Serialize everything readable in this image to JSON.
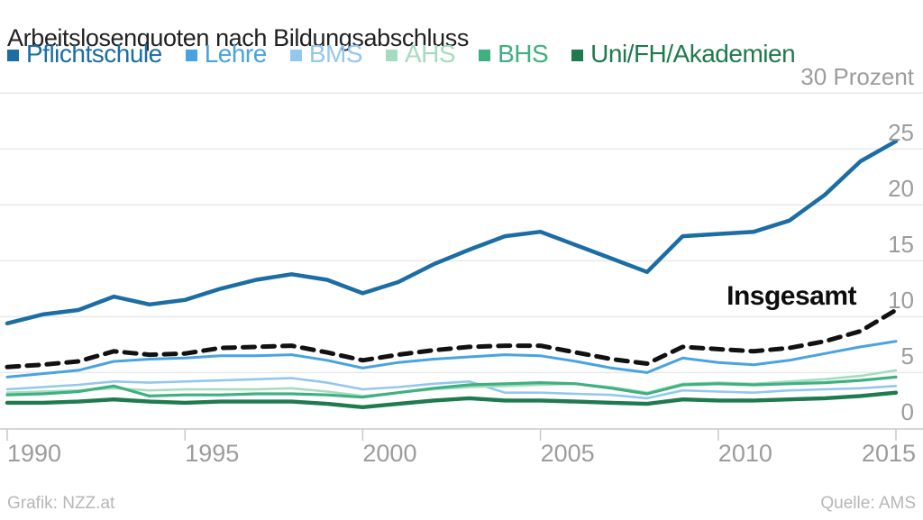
{
  "footer": {
    "credit": "Grafik: NZZ.at",
    "source": "Quelle: AMS"
  },
  "chart_data": {
    "type": "line",
    "title": "Arbeitslosenquoten nach Bildungsabschluss",
    "xlabel": "",
    "ylabel": "Prozent",
    "ylim": [
      0,
      30
    ],
    "grid": "horizontal",
    "legend_position": "top",
    "x": [
      1990,
      1991,
      1992,
      1993,
      1994,
      1995,
      1996,
      1997,
      1998,
      1999,
      2000,
      2001,
      2002,
      2003,
      2004,
      2005,
      2006,
      2007,
      2008,
      2009,
      2010,
      2011,
      2012,
      2013,
      2014,
      2015
    ],
    "x_ticks": [
      "1990",
      "1995",
      "2000",
      "2005",
      "2010",
      "2015"
    ],
    "x_tick_years": [
      1990,
      1995,
      2000,
      2005,
      2010,
      2015
    ],
    "y_ticks": [
      {
        "value": 0,
        "label": "0"
      },
      {
        "value": 5,
        "label": "5"
      },
      {
        "value": 10,
        "label": "10"
      },
      {
        "value": 15,
        "label": "15"
      },
      {
        "value": 20,
        "label": "20"
      },
      {
        "value": 25,
        "label": "25"
      },
      {
        "value": 30,
        "label": "30 Prozent"
      }
    ],
    "annotation": {
      "text": "Insgesamt",
      "series": "Insgesamt"
    },
    "legend_order": [
      "Pflichtschule",
      "Lehre",
      "BMS",
      "AHS",
      "BHS",
      "Uni/FH/Akademien"
    ],
    "series": [
      {
        "name": "BMS",
        "id": "bms",
        "color": "#94c7ee",
        "width": 2.6,
        "in_legend": true,
        "values": [
          3.5,
          3.7,
          3.9,
          4.2,
          4.1,
          4.2,
          4.3,
          4.4,
          4.5,
          4.1,
          3.5,
          3.7,
          4.0,
          4.2,
          3.2,
          3.2,
          3.1,
          3.0,
          2.7,
          3.4,
          3.3,
          3.2,
          3.4,
          3.5,
          3.6,
          3.8
        ]
      },
      {
        "name": "AHS",
        "id": "ahs",
        "color": "#a5dcc0",
        "width": 2.6,
        "in_legend": true,
        "values": [
          3.2,
          3.3,
          3.4,
          3.6,
          3.4,
          3.5,
          3.5,
          3.5,
          3.6,
          3.3,
          2.9,
          3.2,
          3.5,
          3.7,
          3.8,
          3.9,
          4.0,
          3.7,
          3.2,
          4.0,
          4.1,
          4.0,
          4.2,
          4.4,
          4.7,
          5.2
        ]
      },
      {
        "name": "BHS",
        "id": "bhs",
        "color": "#3fb07f",
        "width": 3.2,
        "in_legend": true,
        "values": [
          3.0,
          3.1,
          3.3,
          3.8,
          2.9,
          3.0,
          3.0,
          3.1,
          3.1,
          3.0,
          2.8,
          3.2,
          3.6,
          3.9,
          4.0,
          4.1,
          4.0,
          3.6,
          3.1,
          3.9,
          4.0,
          3.9,
          4.0,
          4.1,
          4.3,
          4.6
        ]
      },
      {
        "name": "Uni/FH/Akademien",
        "id": "uni-fh-akademien",
        "color": "#1f7a4d",
        "width": 4.4,
        "in_legend": true,
        "values": [
          2.3,
          2.3,
          2.4,
          2.6,
          2.4,
          2.3,
          2.4,
          2.4,
          2.4,
          2.2,
          1.9,
          2.2,
          2.5,
          2.7,
          2.5,
          2.5,
          2.4,
          2.3,
          2.2,
          2.6,
          2.5,
          2.5,
          2.6,
          2.7,
          2.9,
          3.2
        ]
      },
      {
        "name": "Lehre",
        "id": "lehre",
        "color": "#49a3e0",
        "width": 3.0,
        "in_legend": true,
        "values": [
          4.6,
          4.9,
          5.2,
          6.0,
          6.2,
          6.3,
          6.5,
          6.5,
          6.6,
          6.1,
          5.4,
          5.9,
          6.2,
          6.4,
          6.6,
          6.5,
          6.0,
          5.4,
          5.0,
          6.3,
          5.9,
          5.7,
          6.1,
          6.7,
          7.3,
          7.8
        ]
      },
      {
        "name": "Pflichtschule",
        "id": "pflichtschule",
        "color": "#1b6da3",
        "width": 4.5,
        "in_legend": true,
        "values": [
          9.4,
          10.2,
          10.6,
          11.8,
          11.1,
          11.5,
          12.5,
          13.3,
          13.8,
          13.3,
          12.1,
          13.1,
          14.7,
          16.0,
          17.2,
          17.6,
          16.4,
          15.2,
          14.0,
          17.2,
          17.4,
          17.6,
          18.6,
          20.9,
          23.9,
          25.7
        ]
      },
      {
        "name": "Insgesamt",
        "id": "insgesamt",
        "color": "#111111",
        "width": 5.0,
        "dash": "13 9",
        "in_legend": false,
        "values": [
          5.5,
          5.7,
          6.0,
          6.9,
          6.6,
          6.7,
          7.2,
          7.3,
          7.4,
          6.8,
          6.1,
          6.6,
          7.0,
          7.3,
          7.4,
          7.4,
          6.8,
          6.2,
          5.8,
          7.3,
          7.1,
          6.9,
          7.2,
          7.8,
          8.7,
          10.6
        ]
      }
    ],
    "style": {
      "gridline_color": "#e9e9e9",
      "axis_color": "#c9c9c9",
      "tick_label_color": "#9c9c9c"
    }
  }
}
